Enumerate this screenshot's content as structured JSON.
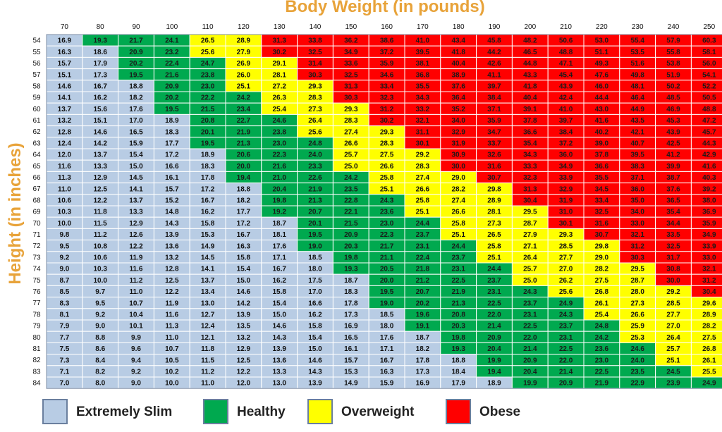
{
  "chart_data": {
    "type": "heatmap",
    "title": "Body Weight (in pounds)",
    "xlabel": "Body Weight (in pounds)",
    "ylabel": "Height (in inches)",
    "weights": [
      70,
      80,
      90,
      100,
      110,
      120,
      130,
      140,
      150,
      160,
      170,
      180,
      190,
      200,
      210,
      220,
      230,
      240,
      250
    ],
    "heights": [
      54,
      55,
      56,
      57,
      58,
      59,
      60,
      61,
      62,
      63,
      64,
      65,
      66,
      67,
      68,
      69,
      70,
      71,
      72,
      73,
      74,
      75,
      76,
      77,
      78,
      79,
      80,
      81,
      82,
      83,
      84
    ],
    "bmi": [
      [
        "16.9",
        "19.3",
        "21.7",
        "24.1",
        "26.5",
        "28.9",
        "31.3",
        "33.8",
        "36.2",
        "38.6",
        "41.0",
        "43.4",
        "45.8",
        "48.2",
        "50.6",
        "53.0",
        "55.4",
        "57.9",
        "60.3"
      ],
      [
        "16.3",
        "18.6",
        "20.9",
        "23.2",
        "25.6",
        "27.9",
        "30.2",
        "32.5",
        "34.9",
        "37.2",
        "39.5",
        "41.8",
        "44.2",
        "46.5",
        "48.8",
        "51.1",
        "53.5",
        "55.8",
        "58.1"
      ],
      [
        "15.7",
        "17.9",
        "20.2",
        "22.4",
        "24.7",
        "26.9",
        "29.1",
        "31.4",
        "33.6",
        "35.9",
        "38.1",
        "40.4",
        "42.6",
        "44.8",
        "47.1",
        "49.3",
        "51.6",
        "53.8",
        "56.0"
      ],
      [
        "15.1",
        "17.3",
        "19.5",
        "21.6",
        "23.8",
        "26.0",
        "28.1",
        "30.3",
        "32.5",
        "34.6",
        "36.8",
        "38.9",
        "41.1",
        "43.3",
        "45.4",
        "47.6",
        "49.8",
        "51.9",
        "54.1"
      ],
      [
        "14.6",
        "16.7",
        "18.8",
        "20.9",
        "23.0",
        "25.1",
        "27.2",
        "29.3",
        "31.3",
        "33.4",
        "35.5",
        "37.6",
        "39.7",
        "41.8",
        "43.9",
        "46.0",
        "48.1",
        "50.2",
        "52.2"
      ],
      [
        "14.1",
        "16.2",
        "18.2",
        "20.2",
        "22.2",
        "24.2",
        "26.3",
        "28.3",
        "30.3",
        "32.3",
        "34.3",
        "36.4",
        "38.4",
        "40.4",
        "42.4",
        "44.4",
        "46.4",
        "48.5",
        "50.5"
      ],
      [
        "13.7",
        "15.6",
        "17.6",
        "19.5",
        "21.5",
        "23.4",
        "25.4",
        "27.3",
        "29.3",
        "31.2",
        "33.2",
        "35.2",
        "37.1",
        "39.1",
        "41.0",
        "43.0",
        "44.9",
        "46.9",
        "48.8"
      ],
      [
        "13.2",
        "15.1",
        "17.0",
        "18.9",
        "20.8",
        "22.7",
        "24.6",
        "26.4",
        "28.3",
        "30.2",
        "32.1",
        "34.0",
        "35.9",
        "37.8",
        "39.7",
        "41.6",
        "43.5",
        "45.3",
        "47.2"
      ],
      [
        "12.8",
        "14.6",
        "16.5",
        "18.3",
        "20.1",
        "21.9",
        "23.8",
        "25.6",
        "27.4",
        "29.3",
        "31.1",
        "32.9",
        "34.7",
        "36.6",
        "38.4",
        "40.2",
        "42.1",
        "43.9",
        "45.7"
      ],
      [
        "12.4",
        "14.2",
        "15.9",
        "17.7",
        "19.5",
        "21.3",
        "23.0",
        "24.8",
        "26.6",
        "28.3",
        "30.1",
        "31.9",
        "33.7",
        "35.4",
        "37.2",
        "39.0",
        "40.7",
        "42.5",
        "44.3"
      ],
      [
        "12.0",
        "13.7",
        "15.4",
        "17.2",
        "18.9",
        "20.6",
        "22.3",
        "24.0",
        "25.7",
        "27.5",
        "29.2",
        "30.9",
        "32.6",
        "34.3",
        "36.0",
        "37.8",
        "39.5",
        "41.2",
        "42.9"
      ],
      [
        "11.6",
        "13.3",
        "15.0",
        "16.6",
        "18.3",
        "20.0",
        "21.6",
        "23.3",
        "25.0",
        "26.6",
        "28.3",
        "30.0",
        "31.6",
        "33.3",
        "34.9",
        "36.6",
        "38.3",
        "39.9",
        "41.6"
      ],
      [
        "11.3",
        "12.9",
        "14.5",
        "16.1",
        "17.8",
        "19.4",
        "21.0",
        "22.6",
        "24.2",
        "25.8",
        "27.4",
        "29.0",
        "30.7",
        "32.3",
        "33.9",
        "35.5",
        "37.1",
        "38.7",
        "40.3"
      ],
      [
        "11.0",
        "12.5",
        "14.1",
        "15.7",
        "17.2",
        "18.8",
        "20.4",
        "21.9",
        "23.5",
        "25.1",
        "26.6",
        "28.2",
        "29.8",
        "31.3",
        "32.9",
        "34.5",
        "36.0",
        "37.6",
        "39.2"
      ],
      [
        "10.6",
        "12.2",
        "13.7",
        "15.2",
        "16.7",
        "18.2",
        "19.8",
        "21.3",
        "22.8",
        "24.3",
        "25.8",
        "27.4",
        "28.9",
        "30.4",
        "31.9",
        "33.4",
        "35.0",
        "36.5",
        "38.0"
      ],
      [
        "10.3",
        "11.8",
        "13.3",
        "14.8",
        "16.2",
        "17.7",
        "19.2",
        "20.7",
        "22.1",
        "23.6",
        "25.1",
        "26.6",
        "28.1",
        "29.5",
        "31.0",
        "32.5",
        "34.0",
        "35.4",
        "36.9"
      ],
      [
        "10.0",
        "11.5",
        "12.9",
        "14.3",
        "15.8",
        "17.2",
        "18.7",
        "20.1",
        "21.5",
        "23.0",
        "24.4",
        "25.8",
        "27.3",
        "28.7",
        "30.1",
        "31.6",
        "33.0",
        "34.4",
        "35.9"
      ],
      [
        "9.8",
        "11.2",
        "12.6",
        "13.9",
        "15.3",
        "16.7",
        "18.1",
        "19.5",
        "20.9",
        "22.3",
        "23.7",
        "25.1",
        "26.5",
        "27.9",
        "29.3",
        "30.7",
        "32.1",
        "33.5",
        "34.9"
      ],
      [
        "9.5",
        "10.8",
        "12.2",
        "13.6",
        "14.9",
        "16.3",
        "17.6",
        "19.0",
        "20.3",
        "21.7",
        "23.1",
        "24.4",
        "25.8",
        "27.1",
        "28.5",
        "29.8",
        "31.2",
        "32.5",
        "33.9"
      ],
      [
        "9.2",
        "10.6",
        "11.9",
        "13.2",
        "14.5",
        "15.8",
        "17.1",
        "18.5",
        "19.8",
        "21.1",
        "22.4",
        "23.7",
        "25.1",
        "26.4",
        "27.7",
        "29.0",
        "30.3",
        "31.7",
        "33.0"
      ],
      [
        "9.0",
        "10.3",
        "11.6",
        "12.8",
        "14.1",
        "15.4",
        "16.7",
        "18.0",
        "19.3",
        "20.5",
        "21.8",
        "23.1",
        "24.4",
        "25.7",
        "27.0",
        "28.2",
        "29.5",
        "30.8",
        "32.1"
      ],
      [
        "8.7",
        "10.0",
        "11.2",
        "12.5",
        "13.7",
        "15.0",
        "16.2",
        "17.5",
        "18.7",
        "20.0",
        "21.2",
        "22.5",
        "23.7",
        "25.0",
        "26.2",
        "27.5",
        "28.7",
        "30.0",
        "31.2"
      ],
      [
        "8.5",
        "9.7",
        "11.0",
        "12.2",
        "13.4",
        "14.6",
        "15.8",
        "17.0",
        "18.3",
        "19.5",
        "20.7",
        "21.9",
        "23.1",
        "24.3",
        "25.6",
        "26.8",
        "28.0",
        "29.2",
        "30.4"
      ],
      [
        "8.3",
        "9.5",
        "10.7",
        "11.9",
        "13.0",
        "14.2",
        "15.4",
        "16.6",
        "17.8",
        "19.0",
        "20.2",
        "21.3",
        "22.5",
        "23.7",
        "24.9",
        "26.1",
        "27.3",
        "28.5",
        "29.6"
      ],
      [
        "8.1",
        "9.2",
        "10.4",
        "11.6",
        "12.7",
        "13.9",
        "15.0",
        "16.2",
        "17.3",
        "18.5",
        "19.6",
        "20.8",
        "22.0",
        "23.1",
        "24.3",
        "25.4",
        "26.6",
        "27.7",
        "28.9"
      ],
      [
        "7.9",
        "9.0",
        "10.1",
        "11.3",
        "12.4",
        "13.5",
        "14.6",
        "15.8",
        "16.9",
        "18.0",
        "19.1",
        "20.3",
        "21.4",
        "22.5",
        "23.7",
        "24.8",
        "25.9",
        "27.0",
        "28.2"
      ],
      [
        "7.7",
        "8.8",
        "9.9",
        "11.0",
        "12.1",
        "13.2",
        "14.3",
        "15.4",
        "16.5",
        "17.6",
        "18.7",
        "19.8",
        "20.9",
        "22.0",
        "23.1",
        "24.2",
        "25.3",
        "26.4",
        "27.5"
      ],
      [
        "7.5",
        "8.6",
        "9.6",
        "10.7",
        "11.8",
        "12.9",
        "13.9",
        "15.0",
        "16.1",
        "17.1",
        "18.2",
        "19.3",
        "20.4",
        "21.4",
        "22.5",
        "23.6",
        "24.6",
        "25.7",
        "26.8"
      ],
      [
        "7.3",
        "8.4",
        "9.4",
        "10.5",
        "11.5",
        "12.5",
        "13.6",
        "14.6",
        "15.7",
        "16.7",
        "17.8",
        "18.8",
        "19.9",
        "20.9",
        "22.0",
        "23.0",
        "24.0",
        "25.1",
        "26.1"
      ],
      [
        "7.1",
        "8.2",
        "9.2",
        "10.2",
        "11.2",
        "12.2",
        "13.3",
        "14.3",
        "15.3",
        "16.3",
        "17.3",
        "18.4",
        "19.4",
        "20.4",
        "21.4",
        "22.5",
        "23.5",
        "24.5",
        "25.5"
      ],
      [
        "7.0",
        "8.0",
        "9.0",
        "10.0",
        "11.0",
        "12.0",
        "13.0",
        "13.9",
        "14.9",
        "15.9",
        "16.9",
        "17.9",
        "18.9",
        "19.9",
        "20.9",
        "21.9",
        "22.9",
        "23.9",
        "24.9"
      ]
    ],
    "categories": [
      {
        "key": "slim",
        "label": "Extremely Slim",
        "color": "#b8cce4"
      },
      {
        "key": "healthy",
        "label": "Healthy",
        "color": "#00a94f"
      },
      {
        "key": "overweight",
        "label": "Overweight",
        "color": "#ffff00"
      },
      {
        "key": "obese",
        "label": "Obese",
        "color": "#ff0000"
      }
    ],
    "thresholds": {
      "healthy_min": 19.0,
      "overweight_min": 25.0,
      "obese_min": 30.0
    }
  }
}
